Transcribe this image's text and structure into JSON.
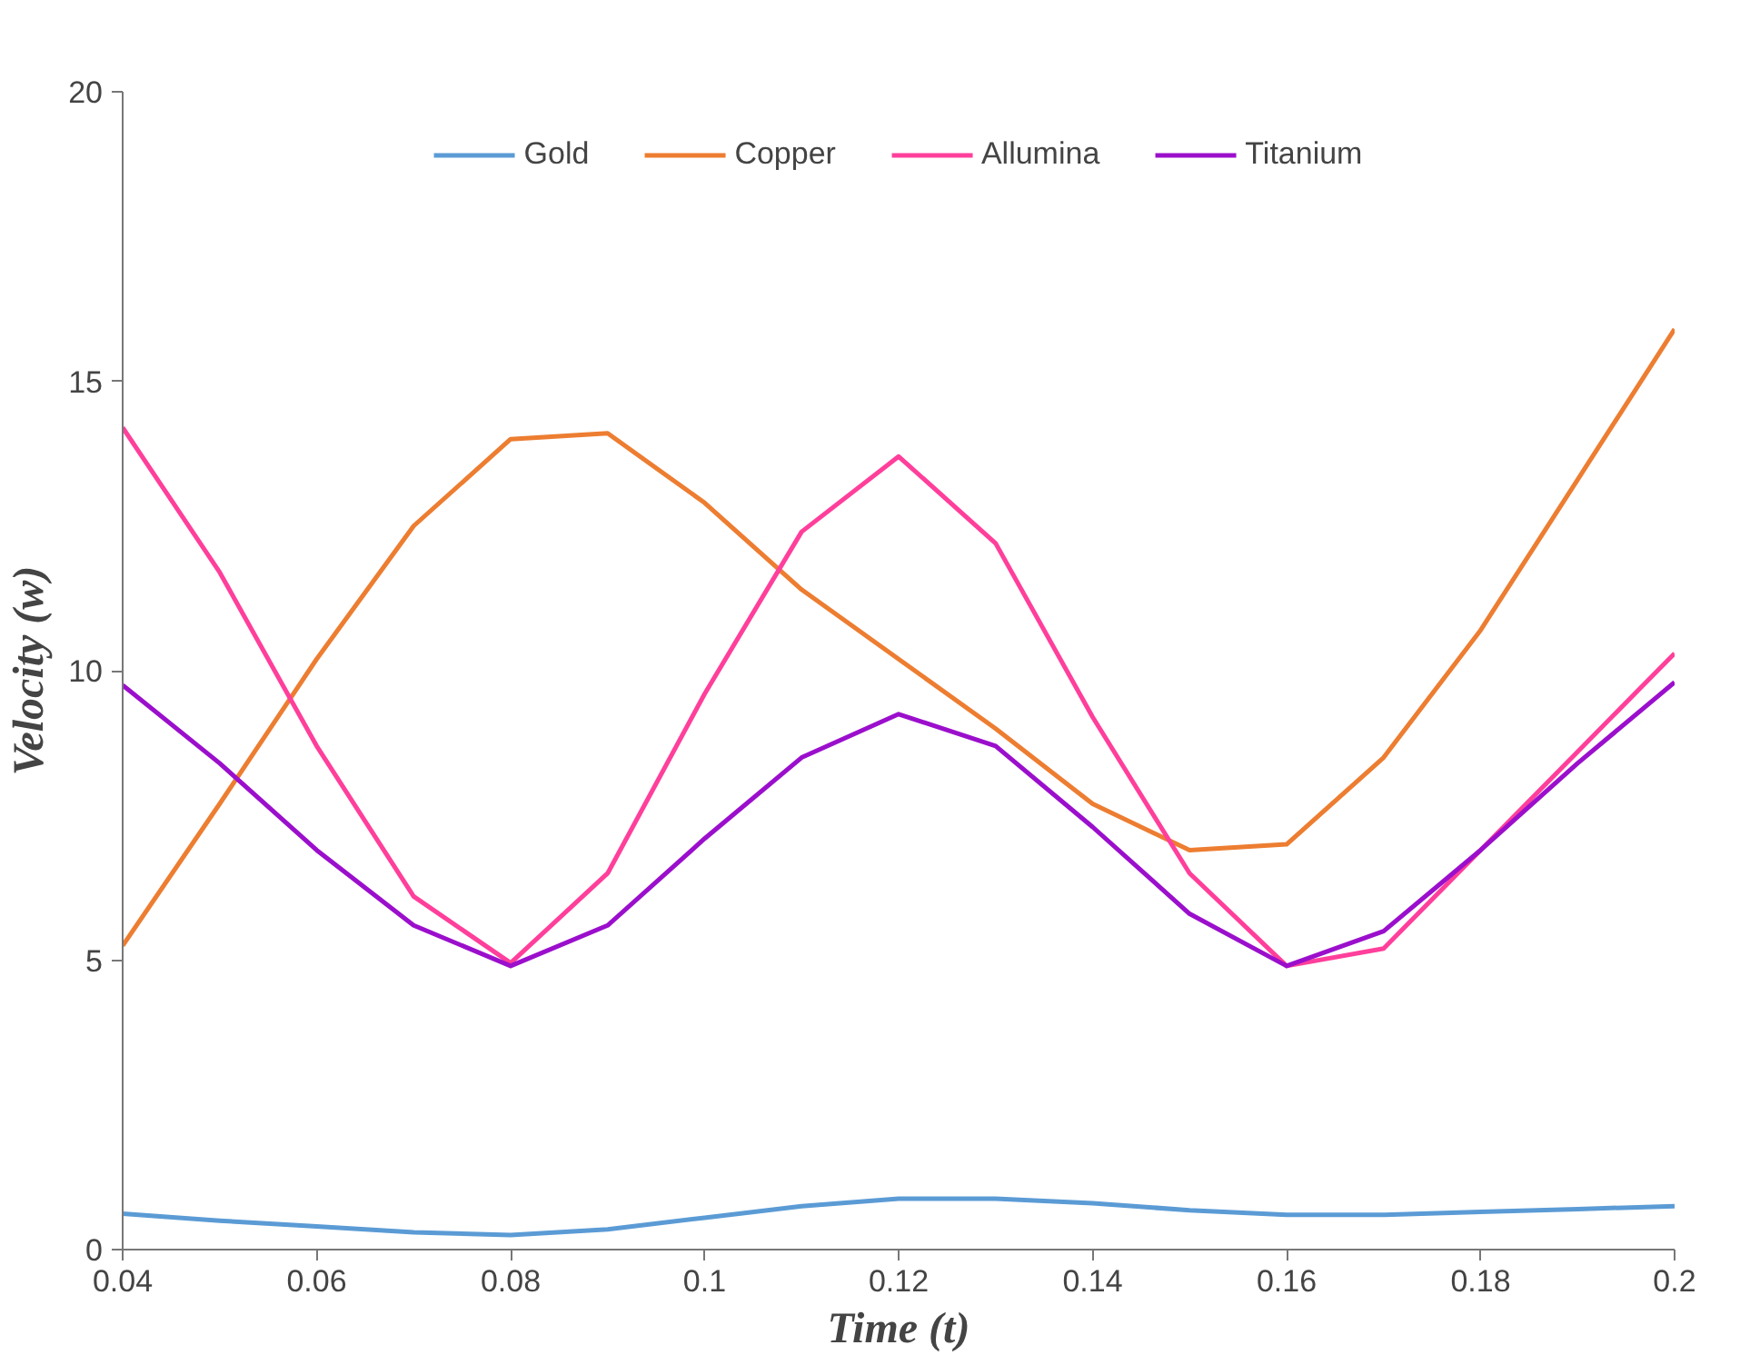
{
  "chart_data": {
    "type": "line",
    "xlabel": "Time (t)",
    "ylabel": "Velocity (w)",
    "x": [
      0.04,
      0.05,
      0.06,
      0.07,
      0.08,
      0.09,
      0.1,
      0.11,
      0.12,
      0.13,
      0.14,
      0.15,
      0.16,
      0.17,
      0.18,
      0.19,
      0.2
    ],
    "series": [
      {
        "name": "Gold",
        "color": "#5b9bd5",
        "values": [
          0.62,
          0.5,
          0.4,
          0.3,
          0.25,
          0.35,
          0.55,
          0.75,
          0.88,
          0.88,
          0.8,
          0.68,
          0.6,
          0.6,
          0.65,
          0.7,
          0.75
        ]
      },
      {
        "name": "Copper",
        "color": "#ed7d31",
        "values": [
          5.25,
          7.7,
          10.2,
          12.5,
          14.0,
          14.1,
          12.9,
          11.4,
          10.2,
          9.0,
          7.7,
          6.9,
          7.0,
          8.5,
          10.7,
          13.3,
          15.9
        ]
      },
      {
        "name": "Allumina",
        "color": "#ff3f9b",
        "values": [
          14.2,
          11.7,
          8.7,
          6.1,
          4.95,
          6.5,
          9.6,
          12.4,
          13.7,
          12.2,
          9.2,
          6.5,
          4.9,
          5.2,
          6.9,
          8.6,
          10.3
        ]
      },
      {
        "name": "Titanium",
        "color": "#9b0fcc",
        "values": [
          9.75,
          8.4,
          6.9,
          5.6,
          4.9,
          5.6,
          7.1,
          8.5,
          9.25,
          8.7,
          7.3,
          5.8,
          4.9,
          5.5,
          6.9,
          8.4,
          9.8
        ]
      }
    ],
    "xlim": [
      0.04,
      0.2
    ],
    "xticks": [
      {
        "value": 0.04,
        "label": "0.04"
      },
      {
        "value": 0.06,
        "label": "0.06"
      },
      {
        "value": 0.08,
        "label": "0.08"
      },
      {
        "value": 0.1,
        "label": "0.1"
      },
      {
        "value": 0.12,
        "label": "0.12"
      },
      {
        "value": 0.14,
        "label": "0.14"
      },
      {
        "value": 0.16,
        "label": "0.16"
      },
      {
        "value": 0.18,
        "label": "0.18"
      },
      {
        "value": 0.2,
        "label": "0.2"
      }
    ],
    "ylim": [
      0,
      20
    ],
    "yticks": [
      0,
      5,
      10,
      15,
      20
    ],
    "grid": false,
    "legend": "top",
    "marker": "none",
    "line_style": "solid"
  }
}
